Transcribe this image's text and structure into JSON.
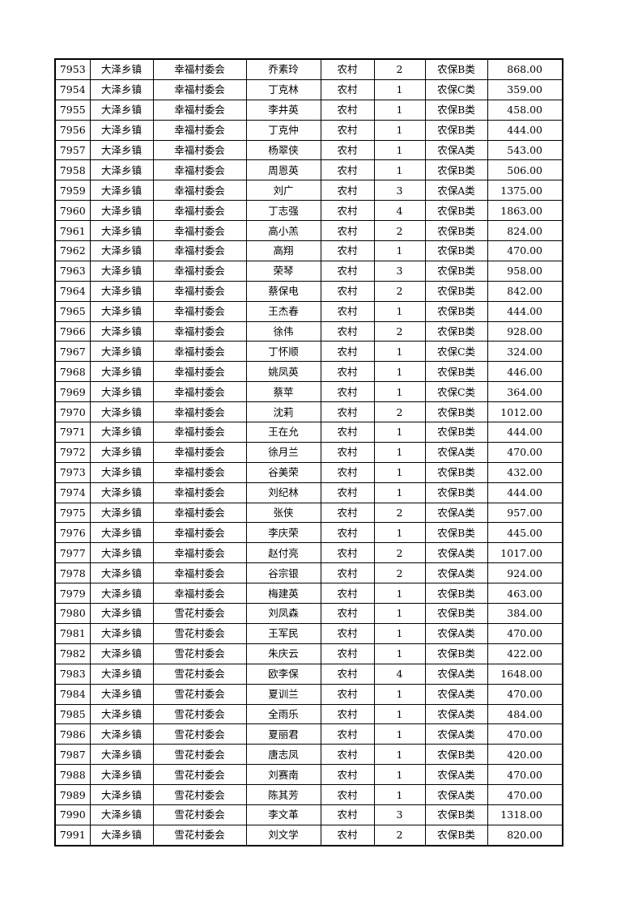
{
  "rows": [
    [
      "7953",
      "大泽乡镇",
      "幸福村委会",
      "乔素玲",
      "农村",
      "2",
      "农保B类",
      "868.00"
    ],
    [
      "7954",
      "大泽乡镇",
      "幸福村委会",
      "丁克林",
      "农村",
      "1",
      "农保C类",
      "359.00"
    ],
    [
      "7955",
      "大泽乡镇",
      "幸福村委会",
      "李井英",
      "农村",
      "1",
      "农保B类",
      "458.00"
    ],
    [
      "7956",
      "大泽乡镇",
      "幸福村委会",
      "丁克仲",
      "农村",
      "1",
      "农保B类",
      "444.00"
    ],
    [
      "7957",
      "大泽乡镇",
      "幸福村委会",
      "杨翠侠",
      "农村",
      "1",
      "农保A类",
      "543.00"
    ],
    [
      "7958",
      "大泽乡镇",
      "幸福村委会",
      "周恩英",
      "农村",
      "1",
      "农保B类",
      "506.00"
    ],
    [
      "7959",
      "大泽乡镇",
      "幸福村委会",
      "刘广",
      "农村",
      "3",
      "农保A类",
      "1375.00"
    ],
    [
      "7960",
      "大泽乡镇",
      "幸福村委会",
      "丁志强",
      "农村",
      "4",
      "农保B类",
      "1863.00"
    ],
    [
      "7961",
      "大泽乡镇",
      "幸福村委会",
      "高小羔",
      "农村",
      "2",
      "农保B类",
      "824.00"
    ],
    [
      "7962",
      "大泽乡镇",
      "幸福村委会",
      "高翔",
      "农村",
      "1",
      "农保B类",
      "470.00"
    ],
    [
      "7963",
      "大泽乡镇",
      "幸福村委会",
      "荣琴",
      "农村",
      "3",
      "农保B类",
      "958.00"
    ],
    [
      "7964",
      "大泽乡镇",
      "幸福村委会",
      "蔡保电",
      "农村",
      "2",
      "农保B类",
      "842.00"
    ],
    [
      "7965",
      "大泽乡镇",
      "幸福村委会",
      "王杰春",
      "农村",
      "1",
      "农保B类",
      "444.00"
    ],
    [
      "7966",
      "大泽乡镇",
      "幸福村委会",
      "徐伟",
      "农村",
      "2",
      "农保B类",
      "928.00"
    ],
    [
      "7967",
      "大泽乡镇",
      "幸福村委会",
      "丁怀顺",
      "农村",
      "1",
      "农保C类",
      "324.00"
    ],
    [
      "7968",
      "大泽乡镇",
      "幸福村委会",
      "姚凤英",
      "农村",
      "1",
      "农保B类",
      "446.00"
    ],
    [
      "7969",
      "大泽乡镇",
      "幸福村委会",
      "蔡苹",
      "农村",
      "1",
      "农保C类",
      "364.00"
    ],
    [
      "7970",
      "大泽乡镇",
      "幸福村委会",
      "沈莉",
      "农村",
      "2",
      "农保B类",
      "1012.00"
    ],
    [
      "7971",
      "大泽乡镇",
      "幸福村委会",
      "王在允",
      "农村",
      "1",
      "农保B类",
      "444.00"
    ],
    [
      "7972",
      "大泽乡镇",
      "幸福村委会",
      "徐月兰",
      "农村",
      "1",
      "农保A类",
      "470.00"
    ],
    [
      "7973",
      "大泽乡镇",
      "幸福村委会",
      "谷美荣",
      "农村",
      "1",
      "农保B类",
      "432.00"
    ],
    [
      "7974",
      "大泽乡镇",
      "幸福村委会",
      "刘纪林",
      "农村",
      "1",
      "农保B类",
      "444.00"
    ],
    [
      "7975",
      "大泽乡镇",
      "幸福村委会",
      "张侠",
      "农村",
      "2",
      "农保A类",
      "957.00"
    ],
    [
      "7976",
      "大泽乡镇",
      "幸福村委会",
      "李庆荣",
      "农村",
      "1",
      "农保B类",
      "445.00"
    ],
    [
      "7977",
      "大泽乡镇",
      "幸福村委会",
      "赵付亮",
      "农村",
      "2",
      "农保A类",
      "1017.00"
    ],
    [
      "7978",
      "大泽乡镇",
      "幸福村委会",
      "谷宗银",
      "农村",
      "2",
      "农保A类",
      "924.00"
    ],
    [
      "7979",
      "大泽乡镇",
      "幸福村委会",
      "梅建英",
      "农村",
      "1",
      "农保B类",
      "463.00"
    ],
    [
      "7980",
      "大泽乡镇",
      "雪花村委会",
      "刘凤森",
      "农村",
      "1",
      "农保B类",
      "384.00"
    ],
    [
      "7981",
      "大泽乡镇",
      "雪花村委会",
      "王军民",
      "农村",
      "1",
      "农保A类",
      "470.00"
    ],
    [
      "7982",
      "大泽乡镇",
      "雪花村委会",
      "朱庆云",
      "农村",
      "1",
      "农保B类",
      "422.00"
    ],
    [
      "7983",
      "大泽乡镇",
      "雪花村委会",
      "欧李保",
      "农村",
      "4",
      "农保A类",
      "1648.00"
    ],
    [
      "7984",
      "大泽乡镇",
      "雪花村委会",
      "夏训兰",
      "农村",
      "1",
      "农保A类",
      "470.00"
    ],
    [
      "7985",
      "大泽乡镇",
      "雪花村委会",
      "全雨乐",
      "农村",
      "1",
      "农保A类",
      "484.00"
    ],
    [
      "7986",
      "大泽乡镇",
      "雪花村委会",
      "夏丽君",
      "农村",
      "1",
      "农保A类",
      "470.00"
    ],
    [
      "7987",
      "大泽乡镇",
      "雪花村委会",
      "唐志凤",
      "农村",
      "1",
      "农保B类",
      "420.00"
    ],
    [
      "7988",
      "大泽乡镇",
      "雪花村委会",
      "刘赛南",
      "农村",
      "1",
      "农保A类",
      "470.00"
    ],
    [
      "7989",
      "大泽乡镇",
      "雪花村委会",
      "陈其芳",
      "农村",
      "1",
      "农保A类",
      "470.00"
    ],
    [
      "7990",
      "大泽乡镇",
      "雪花村委会",
      "李文革",
      "农村",
      "3",
      "农保B类",
      "1318.00"
    ],
    [
      "7991",
      "大泽乡镇",
      "雪花村委会",
      "刘文学",
      "农村",
      "2",
      "农保B类",
      "820.00"
    ]
  ]
}
